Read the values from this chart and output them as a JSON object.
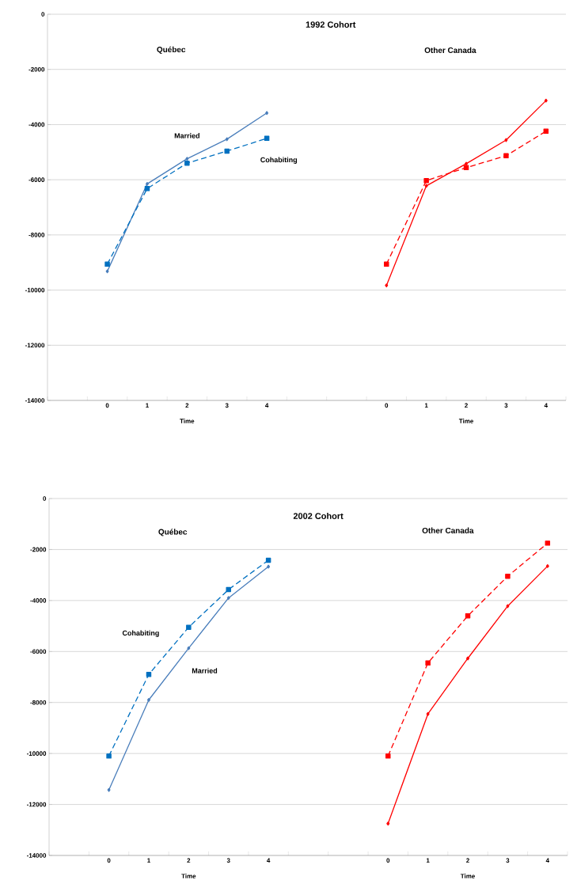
{
  "chart_data": [
    {
      "type": "line",
      "title": "1992 Cohort",
      "xlabel": "Time",
      "annotations": [
        "Québec",
        "Other Canada",
        "Time"
      ],
      "categories": [
        null,
        "0",
        "1",
        "2",
        "3",
        "4",
        null,
        null,
        "0",
        "1",
        "2",
        "3",
        "4"
      ],
      "ylim": [
        -14000,
        0
      ],
      "yticks": [
        -14000,
        -12000,
        -10000,
        -8000,
        -6000,
        -4000,
        -2000,
        0
      ],
      "grid": "y",
      "series": [
        {
          "name": "Married",
          "color": "#4a7ebb",
          "marker": "diamond",
          "line_style": "solid",
          "values": [
            null,
            -9320,
            -6150,
            -5240,
            -4530,
            -3580,
            null,
            null,
            null,
            null,
            null,
            null,
            null
          ]
        },
        {
          "name": "Cohabiting",
          "color": "#0070c0",
          "marker": "square",
          "line_style": "dashed",
          "values": [
            null,
            -9060,
            -6320,
            -5400,
            -4960,
            -4500,
            null,
            null,
            null,
            null,
            null,
            null,
            null
          ]
        },
        {
          "color": "#ff0000",
          "marker": "diamond",
          "line_style": "solid",
          "values": [
            null,
            null,
            null,
            null,
            null,
            null,
            null,
            null,
            -9830,
            -6220,
            -5420,
            -4560,
            -3130
          ]
        },
        {
          "color": "#ff0000",
          "marker": "square",
          "line_style": "dashed",
          "values": [
            null,
            null,
            null,
            null,
            null,
            null,
            null,
            null,
            -9060,
            -6030,
            -5560,
            -5130,
            -4240
          ]
        }
      ]
    },
    {
      "type": "line",
      "title": "2002 Cohort",
      "xlabel": "Time",
      "annotations": [
        "Québec",
        "Other Canada",
        "Time"
      ],
      "categories": [
        null,
        "0",
        "1",
        "2",
        "3",
        "4",
        null,
        null,
        "0",
        "1",
        "2",
        "3",
        "4"
      ],
      "ylim": [
        -14000,
        0
      ],
      "yticks": [
        -14000,
        -12000,
        -10000,
        -8000,
        -6000,
        -4000,
        -2000,
        0
      ],
      "grid": "y",
      "series": [
        {
          "name": "Married",
          "color": "#4a7ebb",
          "marker": "diamond",
          "line_style": "solid",
          "values": [
            null,
            -11430,
            -7900,
            -5870,
            -3900,
            -2670,
            null,
            null,
            null,
            null,
            null,
            null,
            null
          ]
        },
        {
          "name": "Cohabiting",
          "color": "#0070c0",
          "marker": "square",
          "line_style": "dashed",
          "values": [
            null,
            -10100,
            -6900,
            -5050,
            -3570,
            -2420,
            null,
            null,
            null,
            null,
            null,
            null,
            null
          ]
        },
        {
          "color": "#ff0000",
          "marker": "diamond",
          "line_style": "solid",
          "values": [
            null,
            null,
            null,
            null,
            null,
            null,
            null,
            null,
            -12750,
            -8450,
            -6270,
            -4220,
            -2650
          ]
        },
        {
          "color": "#ff0000",
          "marker": "square",
          "line_style": "dashed",
          "values": [
            null,
            null,
            null,
            null,
            null,
            null,
            null,
            null,
            -10100,
            -6450,
            -4600,
            -3050,
            -1750
          ]
        }
      ]
    }
  ]
}
